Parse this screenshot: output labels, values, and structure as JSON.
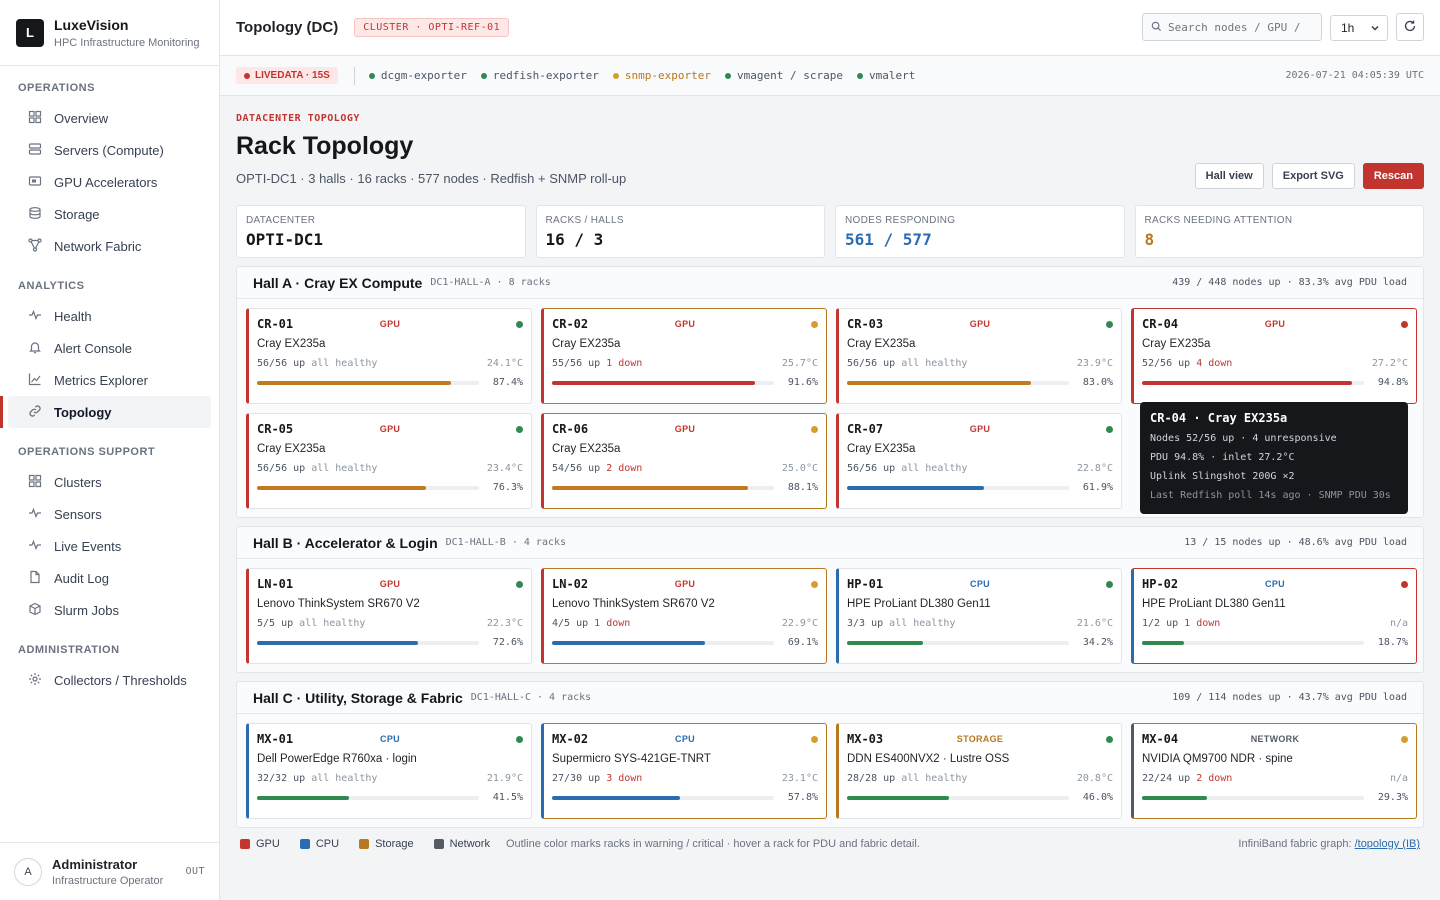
{
  "brand": {
    "logo_letter": "L",
    "name": "LuxeVision",
    "subtitle": "HPC Infrastructure Monitoring"
  },
  "sidebar": {
    "sections": [
      {
        "title": "OPERATIONS",
        "items": [
          {
            "label": "Overview",
            "icon": "grid-icon"
          },
          {
            "label": "Servers (Compute)",
            "icon": "server-icon"
          },
          {
            "label": "GPU Accelerators",
            "icon": "gpu-icon"
          },
          {
            "label": "Storage",
            "icon": "database-icon"
          },
          {
            "label": "Network Fabric",
            "icon": "network-icon"
          }
        ]
      },
      {
        "title": "ANALYTICS",
        "items": [
          {
            "label": "Health",
            "icon": "pulse-icon"
          },
          {
            "label": "Alert Console",
            "icon": "bell-icon"
          },
          {
            "label": "Metrics Explorer",
            "icon": "chart-icon"
          },
          {
            "label": "Topology",
            "icon": "link-icon",
            "active": true
          }
        ]
      },
      {
        "title": "OPERATIONS SUPPORT",
        "items": [
          {
            "label": "Clusters",
            "icon": "grid-icon"
          },
          {
            "label": "Sensors",
            "icon": "pulse-icon"
          },
          {
            "label": "Live Events",
            "icon": "pulse-icon"
          },
          {
            "label": "Audit Log",
            "icon": "file-icon"
          },
          {
            "label": "Slurm Jobs",
            "icon": "box-icon"
          }
        ]
      },
      {
        "title": "ADMINISTRATION",
        "items": [
          {
            "label": "Collectors / Thresholds",
            "icon": "gear-icon"
          }
        ]
      }
    ]
  },
  "user": {
    "initial": "A",
    "name": "Administrator",
    "role": "Infrastructure Operator",
    "logout_label": "OUT"
  },
  "topbar": {
    "title": "Topology (DC)",
    "cluster_badge": "CLUSTER · OPTI-REF-01",
    "search_placeholder": "Search nodes / GPU / ",
    "range": "1h"
  },
  "statusbar": {
    "live_label": "LIVEDATA · 15S",
    "collectors": [
      {
        "name": "dcgm-exporter",
        "color": "#2f8a4f",
        "warn": false
      },
      {
        "name": "redfish-exporter",
        "color": "#2f8a4f",
        "warn": false
      },
      {
        "name": "snmp-exporter",
        "color": "#d69e2e",
        "warn": true
      },
      {
        "name": "vmagent / scrape",
        "color": "#2f8a4f",
        "warn": false
      },
      {
        "name": "vmalert",
        "color": "#2f8a4f",
        "warn": false
      }
    ],
    "timestamp": "2026-07-21 04:05:39 UTC"
  },
  "header": {
    "eyebrow": "DATACENTER TOPOLOGY",
    "title": "Rack Topology",
    "subtitle": "OPTI-DC1 · 3 halls · 16 racks · 577 nodes · Redfish + SNMP roll-up",
    "actions": {
      "hall_view": "Hall view",
      "export": "Export SVG",
      "rescan": "Rescan"
    }
  },
  "stats": [
    {
      "label": "DATACENTER",
      "value": "OPTI-DC1",
      "tone": ""
    },
    {
      "label": "RACKS / HALLS",
      "value": "16 / 3",
      "tone": ""
    },
    {
      "label": "NODES RESPONDING",
      "value": "561 / 577",
      "tone": "blue"
    },
    {
      "label": "RACKS NEEDING ATTENTION",
      "value": "8",
      "tone": "amber"
    }
  ],
  "colors": {
    "gpu": "#c2352f",
    "cpu": "#2b6cb0",
    "storage": "#b7791f",
    "network": "#555b65",
    "ok": "#2f8a4f",
    "warn": "#d69e2e",
    "crit": "#c2352f",
    "bar_amber": "#c07a1f",
    "bar_red": "#c2352f",
    "bar_blue": "#2b6cb0",
    "bar_green": "#2f8a4f"
  },
  "halls": [
    {
      "title": "Hall A · Cray EX Compute",
      "code": "DC1-HALL-A · 8 racks",
      "summary": "439 / 448 nodes up · 83.3% avg PDU load",
      "racks": [
        {
          "id": "CR-01",
          "type": "GPU",
          "kind": "gpu",
          "state": "ok",
          "model": "Cray EX235a",
          "up": "56/56 up",
          "note": "all healthy",
          "note_bad": false,
          "temp": "24.1°C",
          "load": 87.4,
          "load_label": "87.4%",
          "bar": "amber"
        },
        {
          "id": "CR-02",
          "type": "GPU",
          "kind": "gpu",
          "state": "warn",
          "model": "Cray EX235a",
          "up": "55/56 up",
          "note": "1 down",
          "note_bad": true,
          "temp": "25.7°C",
          "load": 91.6,
          "load_label": "91.6%",
          "bar": "red"
        },
        {
          "id": "CR-03",
          "type": "GPU",
          "kind": "gpu",
          "state": "ok",
          "model": "Cray EX235a",
          "up": "56/56 up",
          "note": "all healthy",
          "note_bad": false,
          "temp": "23.9°C",
          "load": 83.0,
          "load_label": "83.0%",
          "bar": "amber"
        },
        {
          "id": "CR-04",
          "type": "GPU",
          "kind": "gpu",
          "state": "crit",
          "model": "Cray EX235a",
          "up": "52/56 up",
          "note": "4 down",
          "note_bad": true,
          "temp": "27.2°C",
          "load": 94.8,
          "load_label": "94.8%",
          "bar": "red"
        },
        {
          "id": "CR-05",
          "type": "GPU",
          "kind": "gpu",
          "state": "ok",
          "model": "Cray EX235a",
          "up": "56/56 up",
          "note": "all healthy",
          "note_bad": false,
          "temp": "23.4°C",
          "load": 76.3,
          "load_label": "76.3%",
          "bar": "amber"
        },
        {
          "id": "CR-06",
          "type": "GPU",
          "kind": "gpu",
          "state": "warn",
          "model": "Cray EX235a",
          "up": "54/56 up",
          "note": "2 down",
          "note_bad": true,
          "temp": "25.0°C",
          "load": 88.1,
          "load_label": "88.1%",
          "bar": "amber"
        },
        {
          "id": "CR-07",
          "type": "GPU",
          "kind": "gpu",
          "state": "ok",
          "model": "Cray EX235a",
          "up": "56/56 up",
          "note": "all healthy",
          "note_bad": false,
          "temp": "22.8°C",
          "load": 61.9,
          "load_label": "61.9%",
          "bar": "blue"
        },
        {
          "hidden": true
        }
      ]
    },
    {
      "title": "Hall B · Accelerator & Login",
      "code": "DC1-HALL-B · 4 racks",
      "summary": "13 / 15 nodes up · 48.6% avg PDU load",
      "racks": [
        {
          "id": "LN-01",
          "type": "GPU",
          "kind": "gpu",
          "state": "ok",
          "model": "Lenovo ThinkSystem SR670 V2",
          "up": "5/5 up",
          "note": "all healthy",
          "note_bad": false,
          "temp": "22.3°C",
          "load": 72.6,
          "load_label": "72.6%",
          "bar": "blue"
        },
        {
          "id": "LN-02",
          "type": "GPU",
          "kind": "gpu",
          "state": "warn",
          "model": "Lenovo ThinkSystem SR670 V2",
          "up": "4/5 up",
          "note": "1 down",
          "note_bad": true,
          "temp": "22.9°C",
          "load": 69.1,
          "load_label": "69.1%",
          "bar": "blue"
        },
        {
          "id": "HP-01",
          "type": "CPU",
          "kind": "cpu",
          "state": "ok",
          "model": "HPE ProLiant DL380 Gen11",
          "up": "3/3 up",
          "note": "all healthy",
          "note_bad": false,
          "temp": "21.6°C",
          "load": 34.2,
          "load_label": "34.2%",
          "bar": "green"
        },
        {
          "id": "HP-02",
          "type": "CPU",
          "kind": "cpu",
          "state": "crit",
          "model": "HPE ProLiant DL380 Gen11",
          "up": "1/2 up",
          "note": "1 down",
          "note_bad": true,
          "temp": "n/a",
          "load": 18.7,
          "load_label": "18.7%",
          "bar": "green"
        }
      ]
    },
    {
      "title": "Hall C · Utility, Storage & Fabric",
      "code": "DC1-HALL-C · 4 racks",
      "summary": "109 / 114 nodes up · 43.7% avg PDU load",
      "racks": [
        {
          "id": "MX-01",
          "type": "CPU",
          "kind": "cpu",
          "state": "ok",
          "model": "Dell PowerEdge R760xa · login",
          "up": "32/32 up",
          "note": "all healthy",
          "note_bad": false,
          "temp": "21.9°C",
          "load": 41.5,
          "load_label": "41.5%",
          "bar": "green"
        },
        {
          "id": "MX-02",
          "type": "CPU",
          "kind": "cpu",
          "state": "warn",
          "model": "Supermicro SYS-421GE-TNRT",
          "up": "27/30 up",
          "note": "3 down",
          "note_bad": true,
          "temp": "23.1°C",
          "load": 57.8,
          "load_label": "57.8%",
          "bar": "blue"
        },
        {
          "id": "MX-03",
          "type": "STORAGE",
          "kind": "storage",
          "state": "ok",
          "model": "DDN ES400NVX2 · Lustre OSS",
          "up": "28/28 up",
          "note": "all healthy",
          "note_bad": false,
          "temp": "20.8°C",
          "load": 46.0,
          "load_label": "46.0%",
          "bar": "green"
        },
        {
          "id": "MX-04",
          "type": "NETWORK",
          "kind": "network",
          "state": "warn",
          "model": "NVIDIA QM9700 NDR · spine",
          "up": "22/24 up",
          "note": "2 down",
          "note_bad": true,
          "temp": "n/a",
          "load": 29.3,
          "load_label": "29.3%",
          "bar": "green"
        }
      ]
    }
  ],
  "tooltip": {
    "title": "CR-04 · Cray EX235a",
    "lines": [
      "Nodes 52/56 up · 4 unresponsive",
      "PDU 94.8% · inlet 27.2°C",
      "Uplink Slingshot 200G ×2"
    ],
    "footer": "Last Redfish poll 14s ago · SNMP PDU 30s"
  },
  "legend": {
    "items": [
      {
        "label": "GPU",
        "color": "#c2352f"
      },
      {
        "label": "CPU",
        "color": "#2b6cb0"
      },
      {
        "label": "Storage",
        "color": "#b7791f"
      },
      {
        "label": "Network",
        "color": "#555b65"
      }
    ],
    "note": "Outline color marks racks in warning / critical · hover a rack for PDU and fabric detail.",
    "right_prefix": "InfiniBand fabric graph: ",
    "right_link": "/topology (IB)"
  }
}
